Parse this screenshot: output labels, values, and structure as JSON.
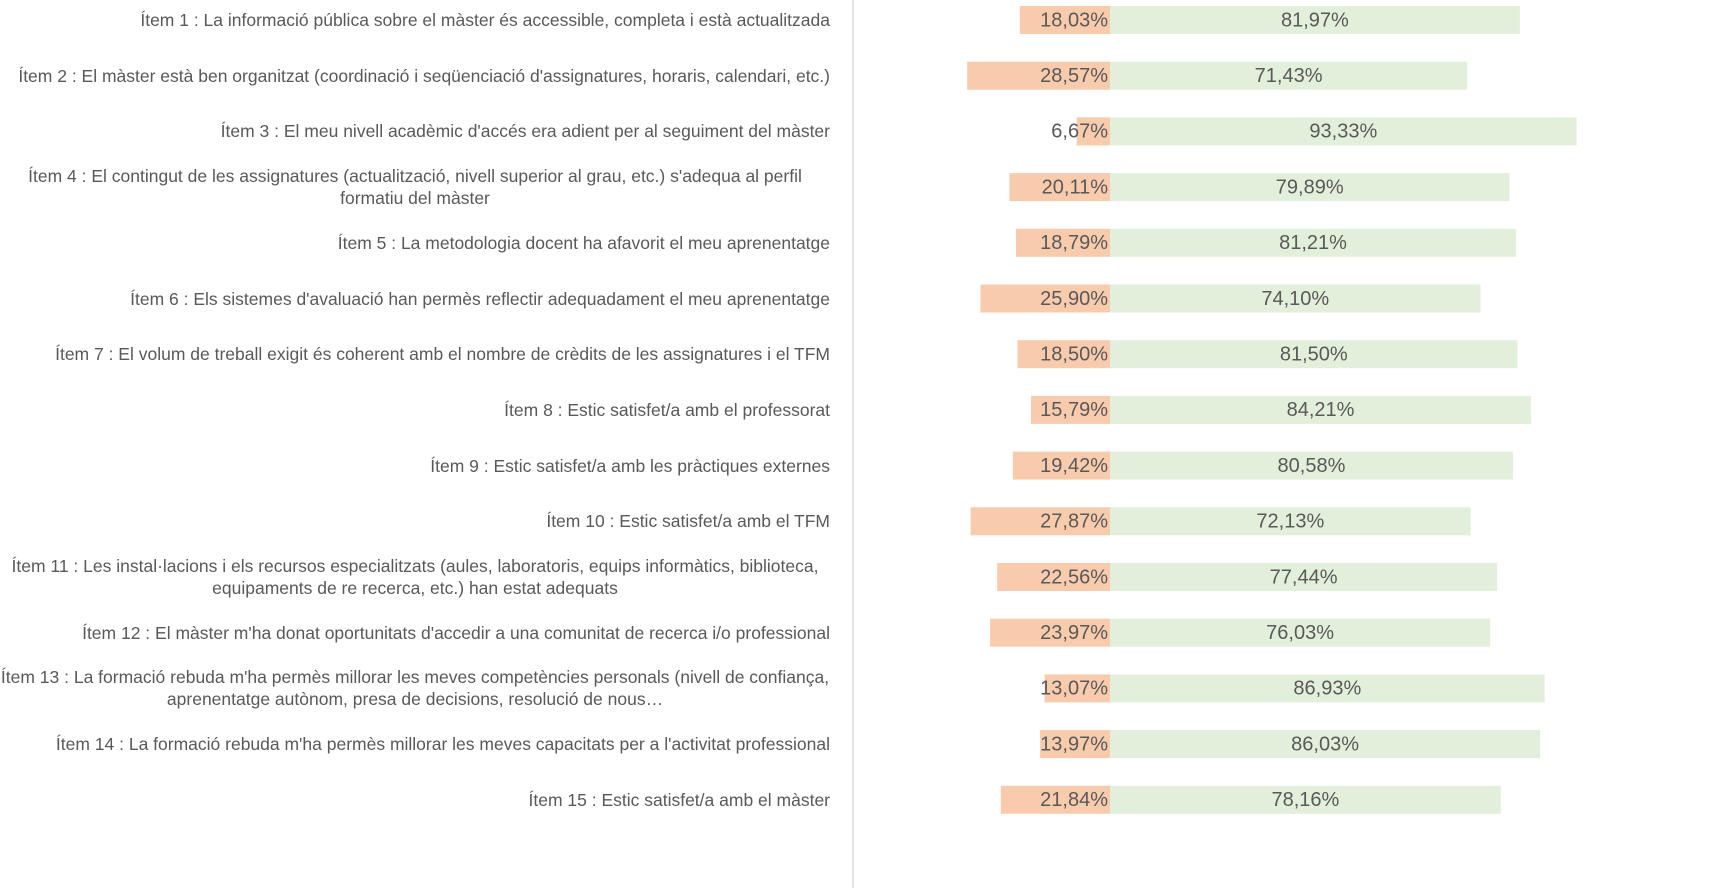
{
  "chart_data": {
    "type": "diverging_bar",
    "categories": [
      "Ítem 1 : La informació pública sobre el màster és accessible, completa i està actualitzada",
      "Ítem 2  :  El màster està ben organitzat (coordinació i seqüenciació d'assignatures, horaris, calendari, etc.)",
      "Ítem  3  :  El meu nivell acadèmic d'accés era adient per al seguiment del màster",
      "Ítem  4  :  El contingut de les assignatures (actualització, nivell superior al grau, etc.) s'adequa al perfil formatiu del màster",
      "Ítem  5  :  La metodologia docent ha afavorit el meu aprenentatge",
      "Ítem  6  :  Els sistemes d'avaluació han permès reflectir adequadament el meu aprenentatge",
      "Ítem  7  :  El volum de treball exigit és coherent amb el nombre de crèdits de les assignatures i el TFM",
      "Ítem  8  :  Estic satisfet/a amb el professorat",
      "Ítem  9  :  Estic satisfet/a amb les pràctiques externes",
      "Ítem  10  :  Estic satisfet/a amb el TFM",
      "Ítem  11  :  Les instal·lacions i els recursos especialitzats (aules, laboratoris, equips informàtics, biblioteca, equipaments de re recerca, etc.) han estat adequats",
      "Ítem  12  :  El màster m'ha donat oportunitats d'accedir a una comunitat de recerca i/o professional",
      "Ítem  13  :  La formació rebuda m'ha permès millorar les meves competències personals (nivell de confiança, aprenentatge autònom, presa de decisions, resolució de nous…",
      "Ítem  14  :  La formació rebuda m'ha permès millorar les meves capacitats per a l'activitat professional",
      "Ítem  15  :  Estic satisfet/a amb el màster"
    ],
    "series": [
      {
        "color": "#f8cbad",
        "side": "left",
        "values": [
          18.03,
          28.57,
          6.67,
          20.11,
          18.79,
          25.9,
          18.5,
          15.79,
          19.42,
          27.87,
          22.56,
          23.97,
          13.07,
          13.97,
          21.84
        ],
        "value_labels": [
          "18,03%",
          "28,57%",
          "6,67%",
          "20,11%",
          "18,79%",
          "25,90%",
          "18,50%",
          "15,79%",
          "19,42%",
          "27,87%",
          "22,56%",
          "23,97%",
          "13,07%",
          "13,97%",
          "21,84%"
        ]
      },
      {
        "color": "#e2efda",
        "side": "right",
        "values": [
          81.97,
          71.43,
          93.33,
          79.89,
          81.21,
          74.1,
          81.5,
          84.21,
          80.58,
          72.13,
          77.44,
          76.03,
          86.93,
          86.03,
          78.16
        ],
        "value_labels": [
          "81,97%",
          "71,43%",
          "93,33%",
          "79,89%",
          "81,21%",
          "74,10%",
          "81,50%",
          "84,21%",
          "80,58%",
          "72,13%",
          "77,44%",
          "76,03%",
          "86,93%",
          "86,03%",
          "78,16%"
        ]
      }
    ]
  }
}
